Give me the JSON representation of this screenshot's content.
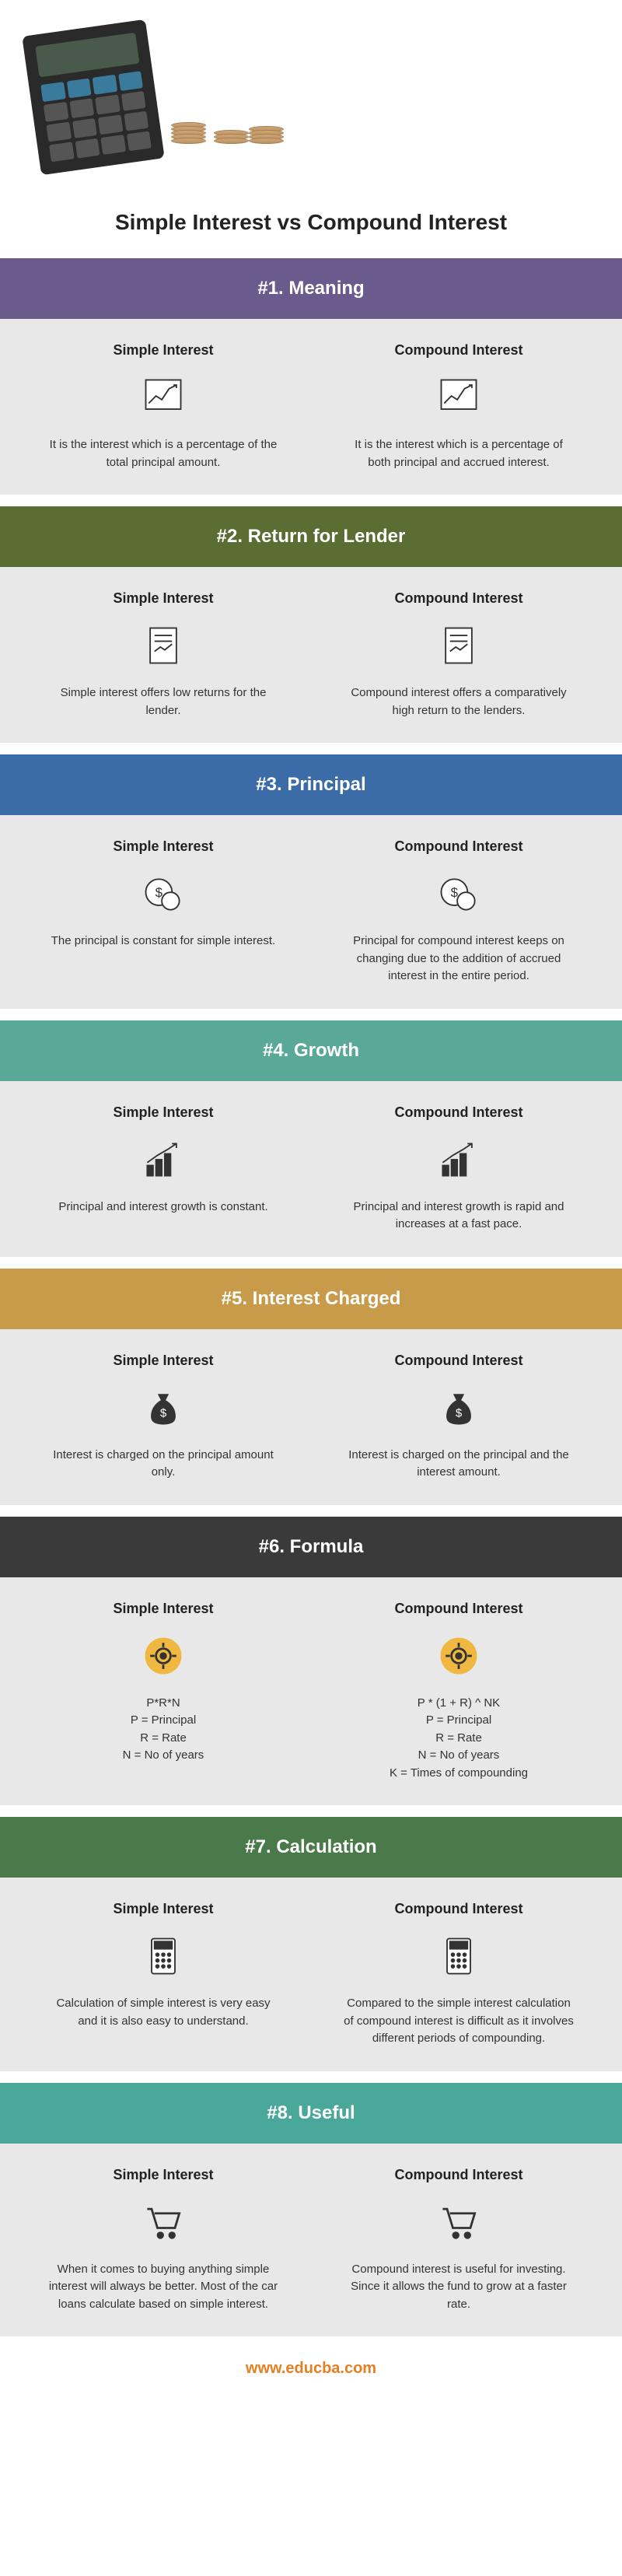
{
  "title": "Simple Interest vs Compound Interest",
  "footer_url": "www.educba.com",
  "col_labels": {
    "simple": "Simple Interest",
    "compound": "Compound Interest"
  },
  "sections": [
    {
      "header": "#1. Meaning",
      "color": "#6b5b8c",
      "simple": "It is the interest which is a percentage of the total principal amount.",
      "compound": "It is the interest which is a percentage of both principal and accrued interest.",
      "icon": "chart-line"
    },
    {
      "header": "#2. Return for Lender",
      "color": "#5a6e34",
      "simple": "Simple interest offers low returns for the lender.",
      "compound": "Compound interest offers a comparatively high return to the lenders.",
      "icon": "document"
    },
    {
      "header": "#3. Principal",
      "color": "#3b6ca8",
      "simple": "The principal is constant for simple interest.",
      "compound": "Principal for compound interest keeps on changing due to the addition of accrued interest in the entire period.",
      "icon": "coin-dollar"
    },
    {
      "header": "#4. Growth",
      "color": "#5aa898",
      "simple": "Principal and interest growth is constant.",
      "compound": "Principal and interest growth is rapid and increases at a fast pace.",
      "icon": "growth-bars"
    },
    {
      "header": "#5. Interest Charged",
      "color": "#c89b4a",
      "simple": "Interest is charged on the principal amount only.",
      "compound": "Interest is charged on the principal and the interest amount.",
      "icon": "money-bag"
    },
    {
      "header": "#6. Formula",
      "color": "#3a3a3a",
      "simple": "P*R*N\nP = Principal\nR = Rate\nN = No of years",
      "compound": "P * (1 + R) ^ NK\nP = Principal\nR = Rate\nN = No of years\nK = Times of compounding",
      "icon": "gear-badge"
    },
    {
      "header": "#7. Calculation",
      "color": "#4a7a4a",
      "simple": "Calculation of simple interest is very easy and it is also easy to understand.",
      "compound": "Compared to the simple interest calculation of compound interest is difficult as it involves different periods of compounding.",
      "icon": "calculator"
    },
    {
      "header": "#8. Useful",
      "color": "#4aa89a",
      "simple": "When it comes to buying anything simple interest will always be better. Most of the car loans calculate based on simple interest.",
      "compound": "Compound interest is useful for investing. Since it allows the fund to grow at a faster rate.",
      "icon": "cart"
    }
  ]
}
